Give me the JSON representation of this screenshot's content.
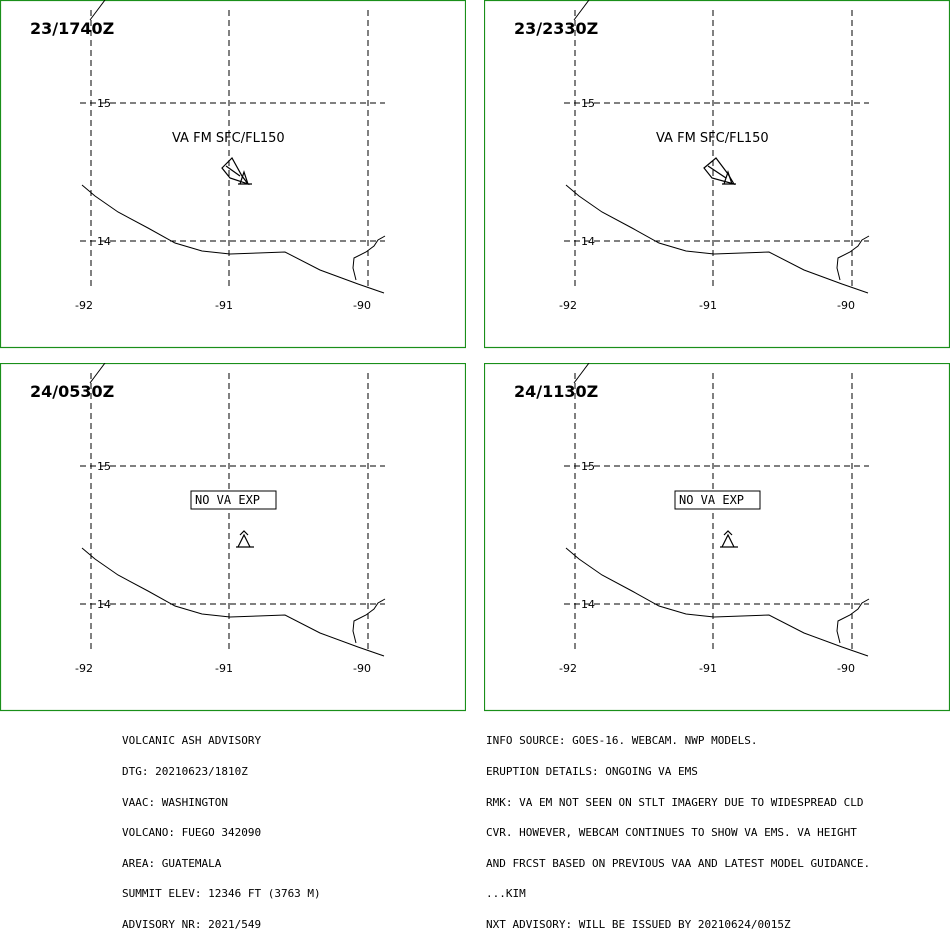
{
  "panels": [
    {
      "time": "23/1740Z",
      "label": "VA FM SFC/FL150",
      "label_style": "plain",
      "show_ash": true
    },
    {
      "time": "23/2330Z",
      "label": "VA FM SFC/FL150",
      "label_style": "plain",
      "show_ash": true
    },
    {
      "time": "24/0530Z",
      "label": "NO VA EXP",
      "label_style": "boxed",
      "show_ash": false
    },
    {
      "time": "24/1130Z",
      "label": "NO VA EXP",
      "label_style": "boxed",
      "show_ash": false
    }
  ],
  "grid_labels": {
    "lat_15": "15",
    "lat_14": "14",
    "lon_92": "-92",
    "lon_91": "-91",
    "lon_90": "-90"
  },
  "colors": {
    "frame": "#1a8f1a",
    "lines": "#000000"
  },
  "advisory_left": [
    "VOLCANIC ASH ADVISORY",
    "DTG: 20210623/1810Z",
    "VAAC: WASHINGTON",
    "VOLCANO: FUEGO 342090",
    "AREA: GUATEMALA",
    "SUMMIT ELEV: 12346 FT (3763 M)",
    "ADVISORY NR: 2021/549"
  ],
  "advisory_right": [
    "INFO SOURCE: GOES-16. WEBCAM. NWP MODELS.",
    "ERUPTION DETAILS: ONGOING VA EMS",
    "RMK: VA EM NOT SEEN ON STLT IMAGERY DUE TO WIDESPREAD CLD",
    "CVR. HOWEVER, WEBCAM CONTINUES TO SHOW VA EMS. VA HEIGHT",
    "AND FRCST BASED ON PREVIOUS VAA AND LATEST MODEL GUIDANCE.",
    "...KIM",
    "NXT ADVISORY: WILL BE ISSUED BY 20210624/0015Z"
  ]
}
